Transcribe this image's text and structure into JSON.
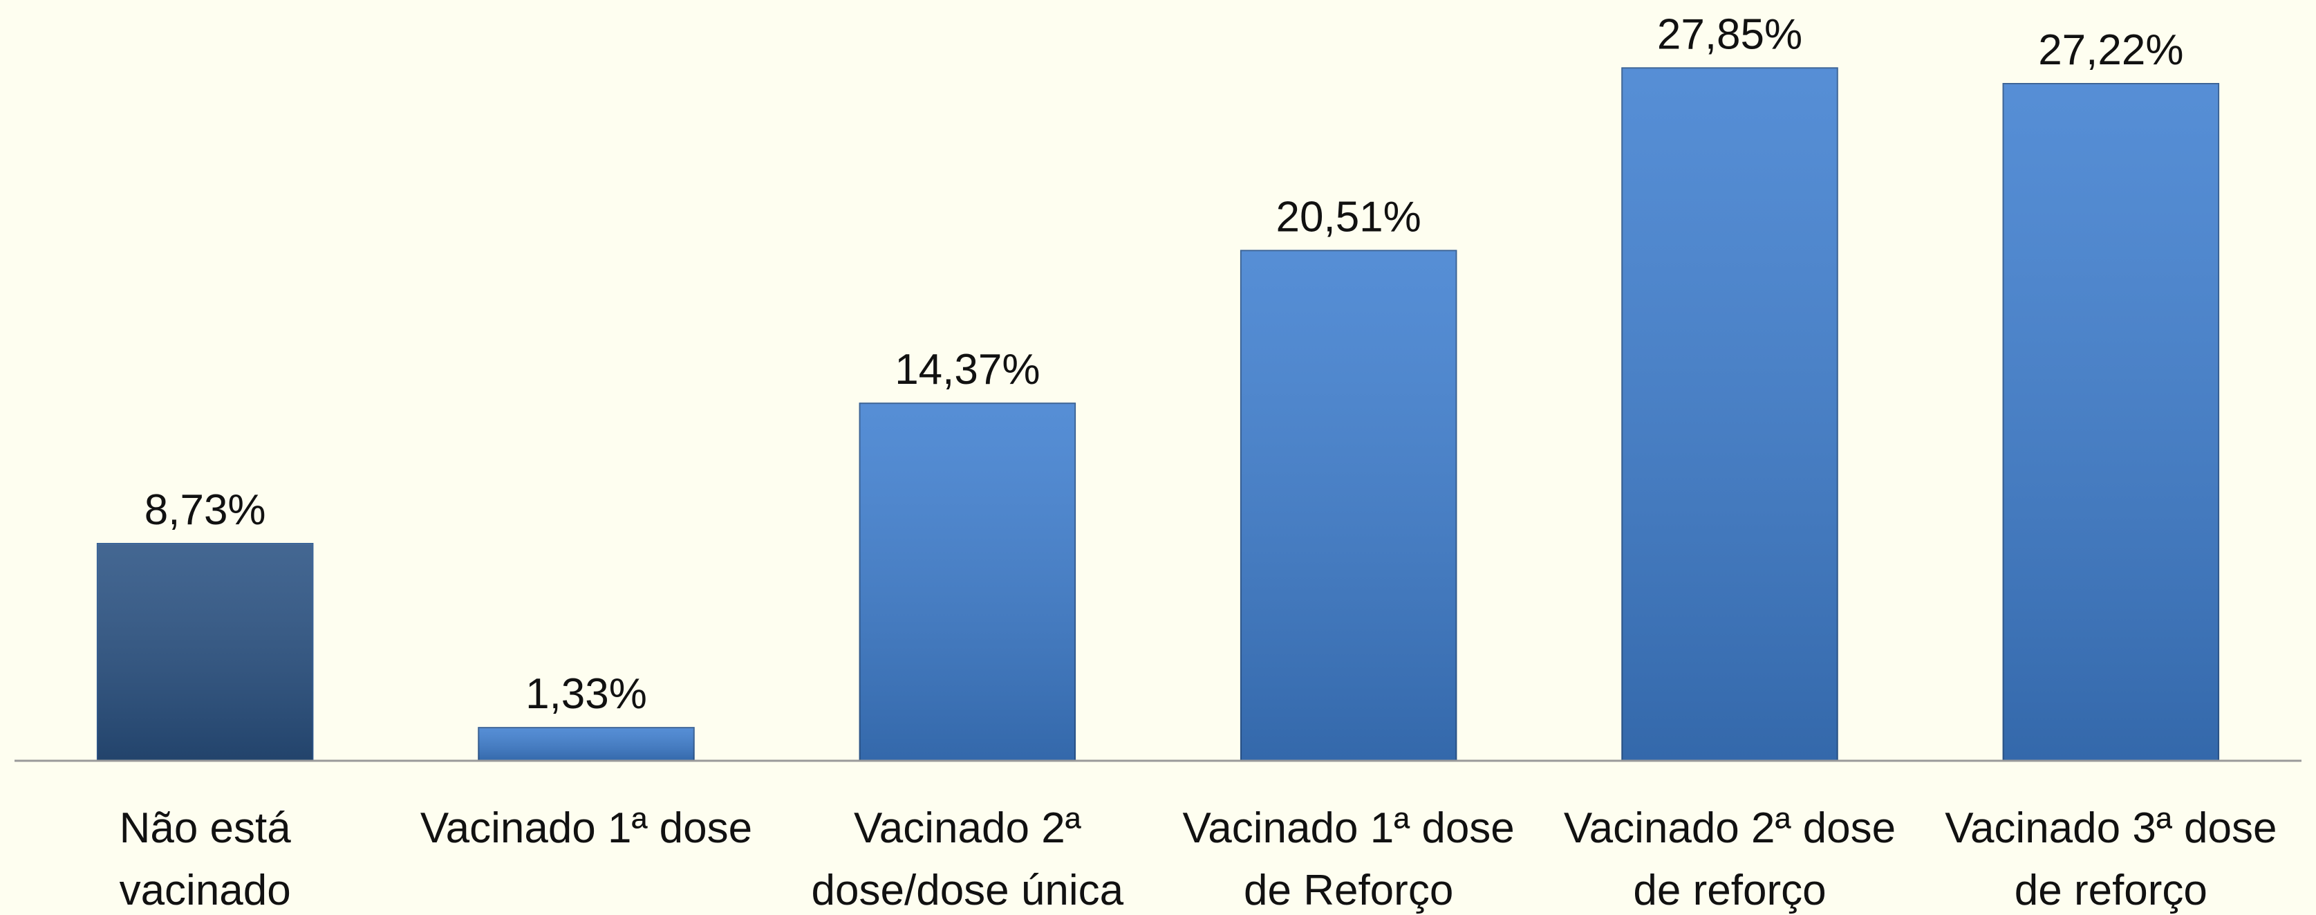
{
  "chart_data": {
    "type": "bar",
    "categories": [
      "Não está\nvacinado",
      "Vacinado 1ª dose",
      "Vacinado 2ª\ndose/dose única",
      "Vacinado 1ª dose\nde Reforço",
      "Vacinado 2ª dose\nde reforço",
      "Vacinado 3ª dose\nde reforço"
    ],
    "values": [
      8.73,
      1.33,
      14.37,
      20.51,
      27.85,
      27.22
    ],
    "value_labels": [
      "8,73%",
      "1,33%",
      "14,37%",
      "20,51%",
      "27,85%",
      "27,22%"
    ],
    "colors": [
      "#2a5283",
      "#3f7fd0",
      "#3f7fd0",
      "#3f7fd0",
      "#3f7fd0",
      "#3f7fd0"
    ],
    "ylim": [
      0,
      30
    ]
  }
}
